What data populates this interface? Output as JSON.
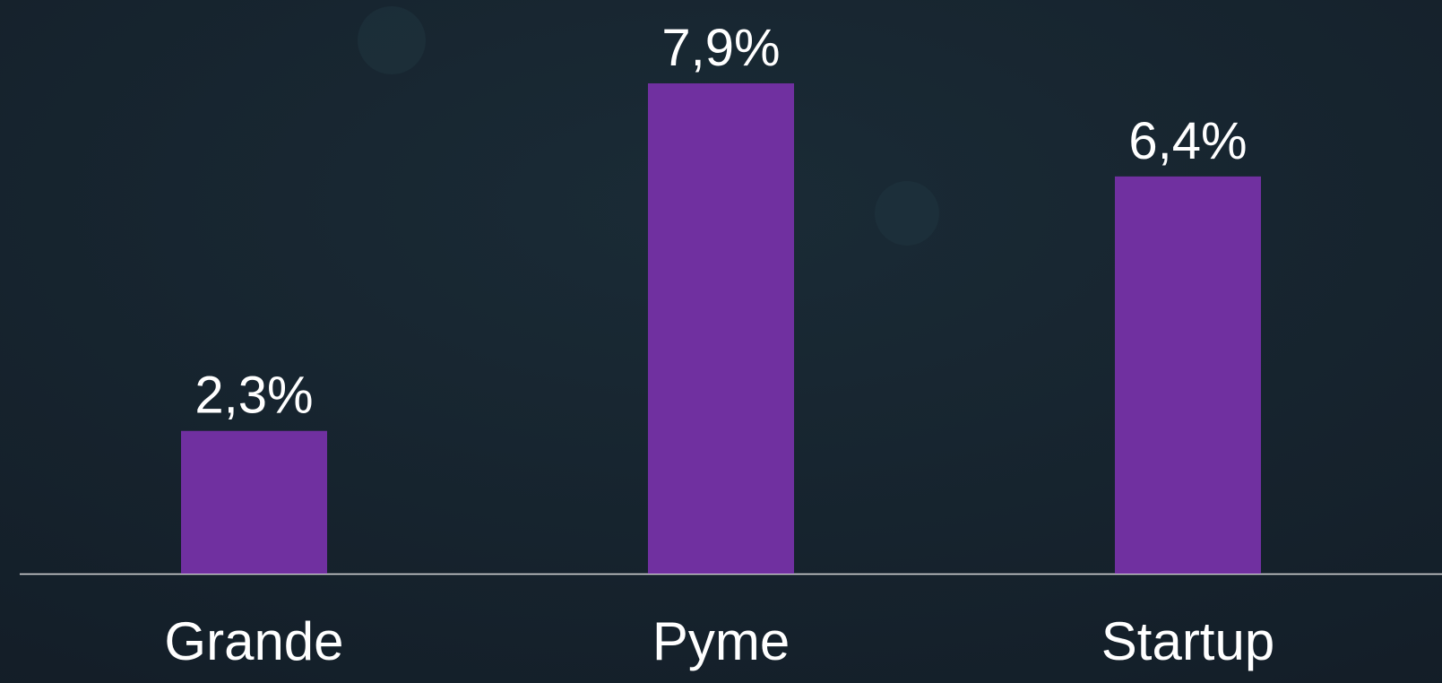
{
  "chart_data": {
    "type": "bar",
    "categories": [
      "Grande",
      "Pyme",
      "Startup"
    ],
    "values": [
      2.3,
      7.9,
      6.4
    ],
    "value_labels": [
      "2,3%",
      "7,9%",
      "6,4%"
    ],
    "color": "#7030a0"
  }
}
